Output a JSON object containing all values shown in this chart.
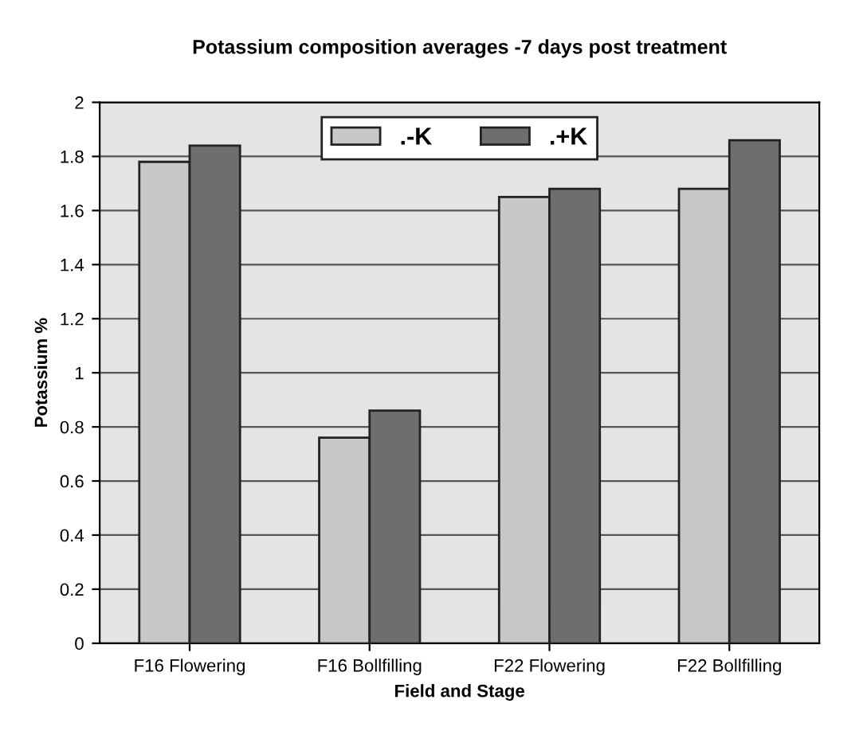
{
  "chart_data": {
    "type": "bar",
    "title": "Potassium composition averages -7 days post treatment",
    "xlabel": "Field and Stage",
    "ylabel": "Potassium %",
    "categories": [
      "F16 Flowering",
      "F16 Bollfilling",
      "F22 Flowering",
      "F22 Bollfilling"
    ],
    "series": [
      {
        "name": ".-K",
        "color": "#c8c8c8",
        "values": [
          1.78,
          0.76,
          1.65,
          1.68
        ]
      },
      {
        "name": ".+K",
        "color": "#6e6e6e",
        "values": [
          1.84,
          0.86,
          1.68,
          1.86
        ]
      }
    ],
    "ylim": [
      0,
      2
    ],
    "yticks": [
      0,
      0.2,
      0.4,
      0.6,
      0.8,
      1,
      1.2,
      1.4,
      1.6,
      1.8,
      2
    ],
    "grid": "y",
    "legend": "top"
  }
}
